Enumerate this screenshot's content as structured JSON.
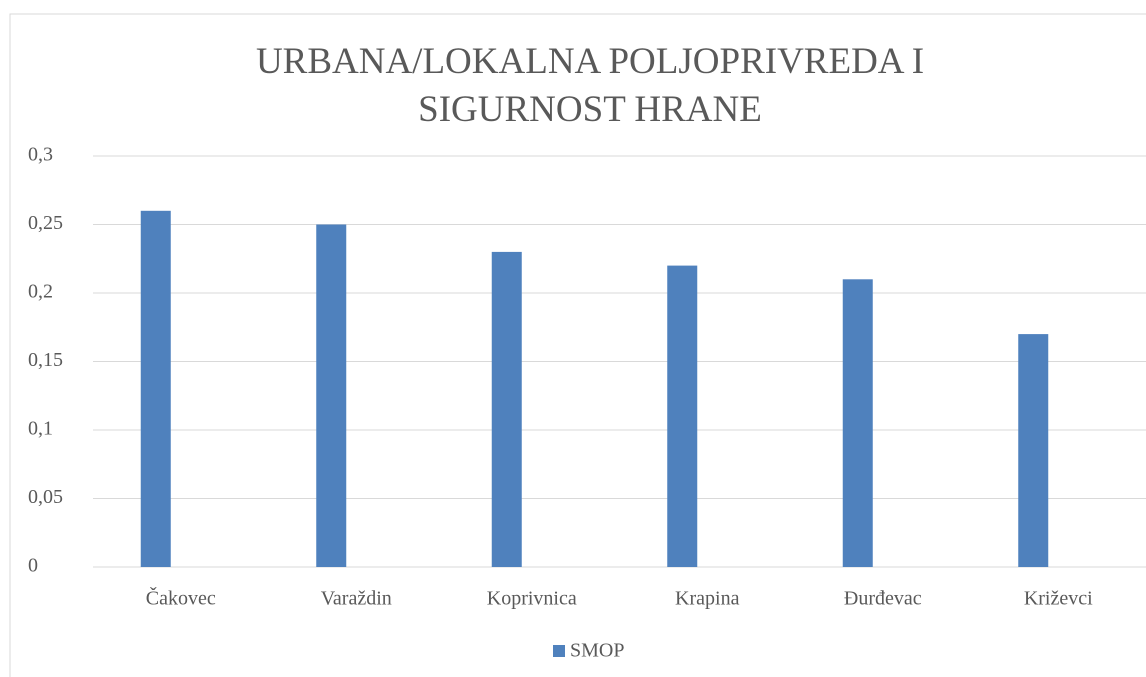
{
  "chart_data": {
    "type": "bar",
    "title": "URBANA/LOKALNA POLJOPRIVREDA I SIGURNOST HRANE",
    "categories": [
      "Čakovec",
      "Varaždin",
      "Koprivnica",
      "Krapina",
      "Đurđevac",
      "Križevci"
    ],
    "series": [
      {
        "name": "SMOP",
        "color": "#4f81bd",
        "values": [
          0.26,
          0.25,
          0.23,
          0.22,
          0.21,
          0.17
        ]
      }
    ],
    "ylim": [
      0,
      0.3
    ],
    "yticks": [
      {
        "value": 0,
        "label": "0"
      },
      {
        "value": 0.05,
        "label": "0,05"
      },
      {
        "value": 0.1,
        "label": "0,1"
      },
      {
        "value": 0.15,
        "label": "0,15"
      },
      {
        "value": 0.2,
        "label": "0,2"
      },
      {
        "value": 0.25,
        "label": "0,25"
      },
      {
        "value": 0.3,
        "label": "0,3"
      }
    ],
    "grid": true,
    "legend": "bottom"
  }
}
